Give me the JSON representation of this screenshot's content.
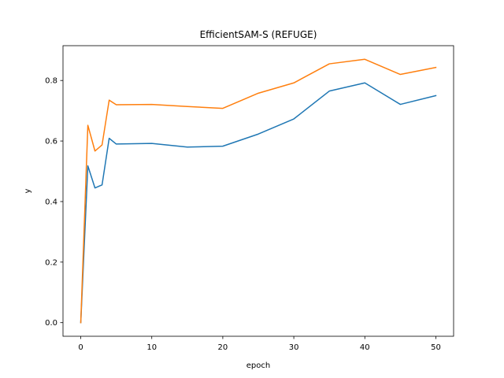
{
  "chart_data": {
    "type": "line",
    "title": "EfficientSAM-S (REFUGE)",
    "xlabel": "epoch",
    "ylabel": "y",
    "xlim": [
      -2.5,
      52.5
    ],
    "ylim": [
      -0.045,
      0.915
    ],
    "xticks": [
      0,
      10,
      20,
      30,
      40,
      50
    ],
    "yticks": [
      0.0,
      0.2,
      0.4,
      0.6,
      0.8
    ],
    "ytick_labels": [
      "0.0",
      "0.2",
      "0.4",
      "0.6",
      "0.8"
    ],
    "grid": false,
    "x": [
      0,
      1,
      2,
      3,
      4,
      5,
      10,
      15,
      20,
      25,
      30,
      35,
      40,
      45,
      50
    ],
    "series": [
      {
        "color": "#1f77b4",
        "values": [
          0.0,
          0.518,
          0.445,
          0.455,
          0.609,
          0.59,
          0.592,
          0.58,
          0.583,
          0.623,
          0.673,
          0.765,
          0.792,
          0.721,
          0.75
        ]
      },
      {
        "color": "#ff7f0e",
        "values": [
          0.0,
          0.652,
          0.567,
          0.587,
          0.735,
          0.72,
          0.721,
          0.714,
          0.708,
          0.758,
          0.792,
          0.855,
          0.87,
          0.82,
          0.843
        ]
      }
    ]
  }
}
